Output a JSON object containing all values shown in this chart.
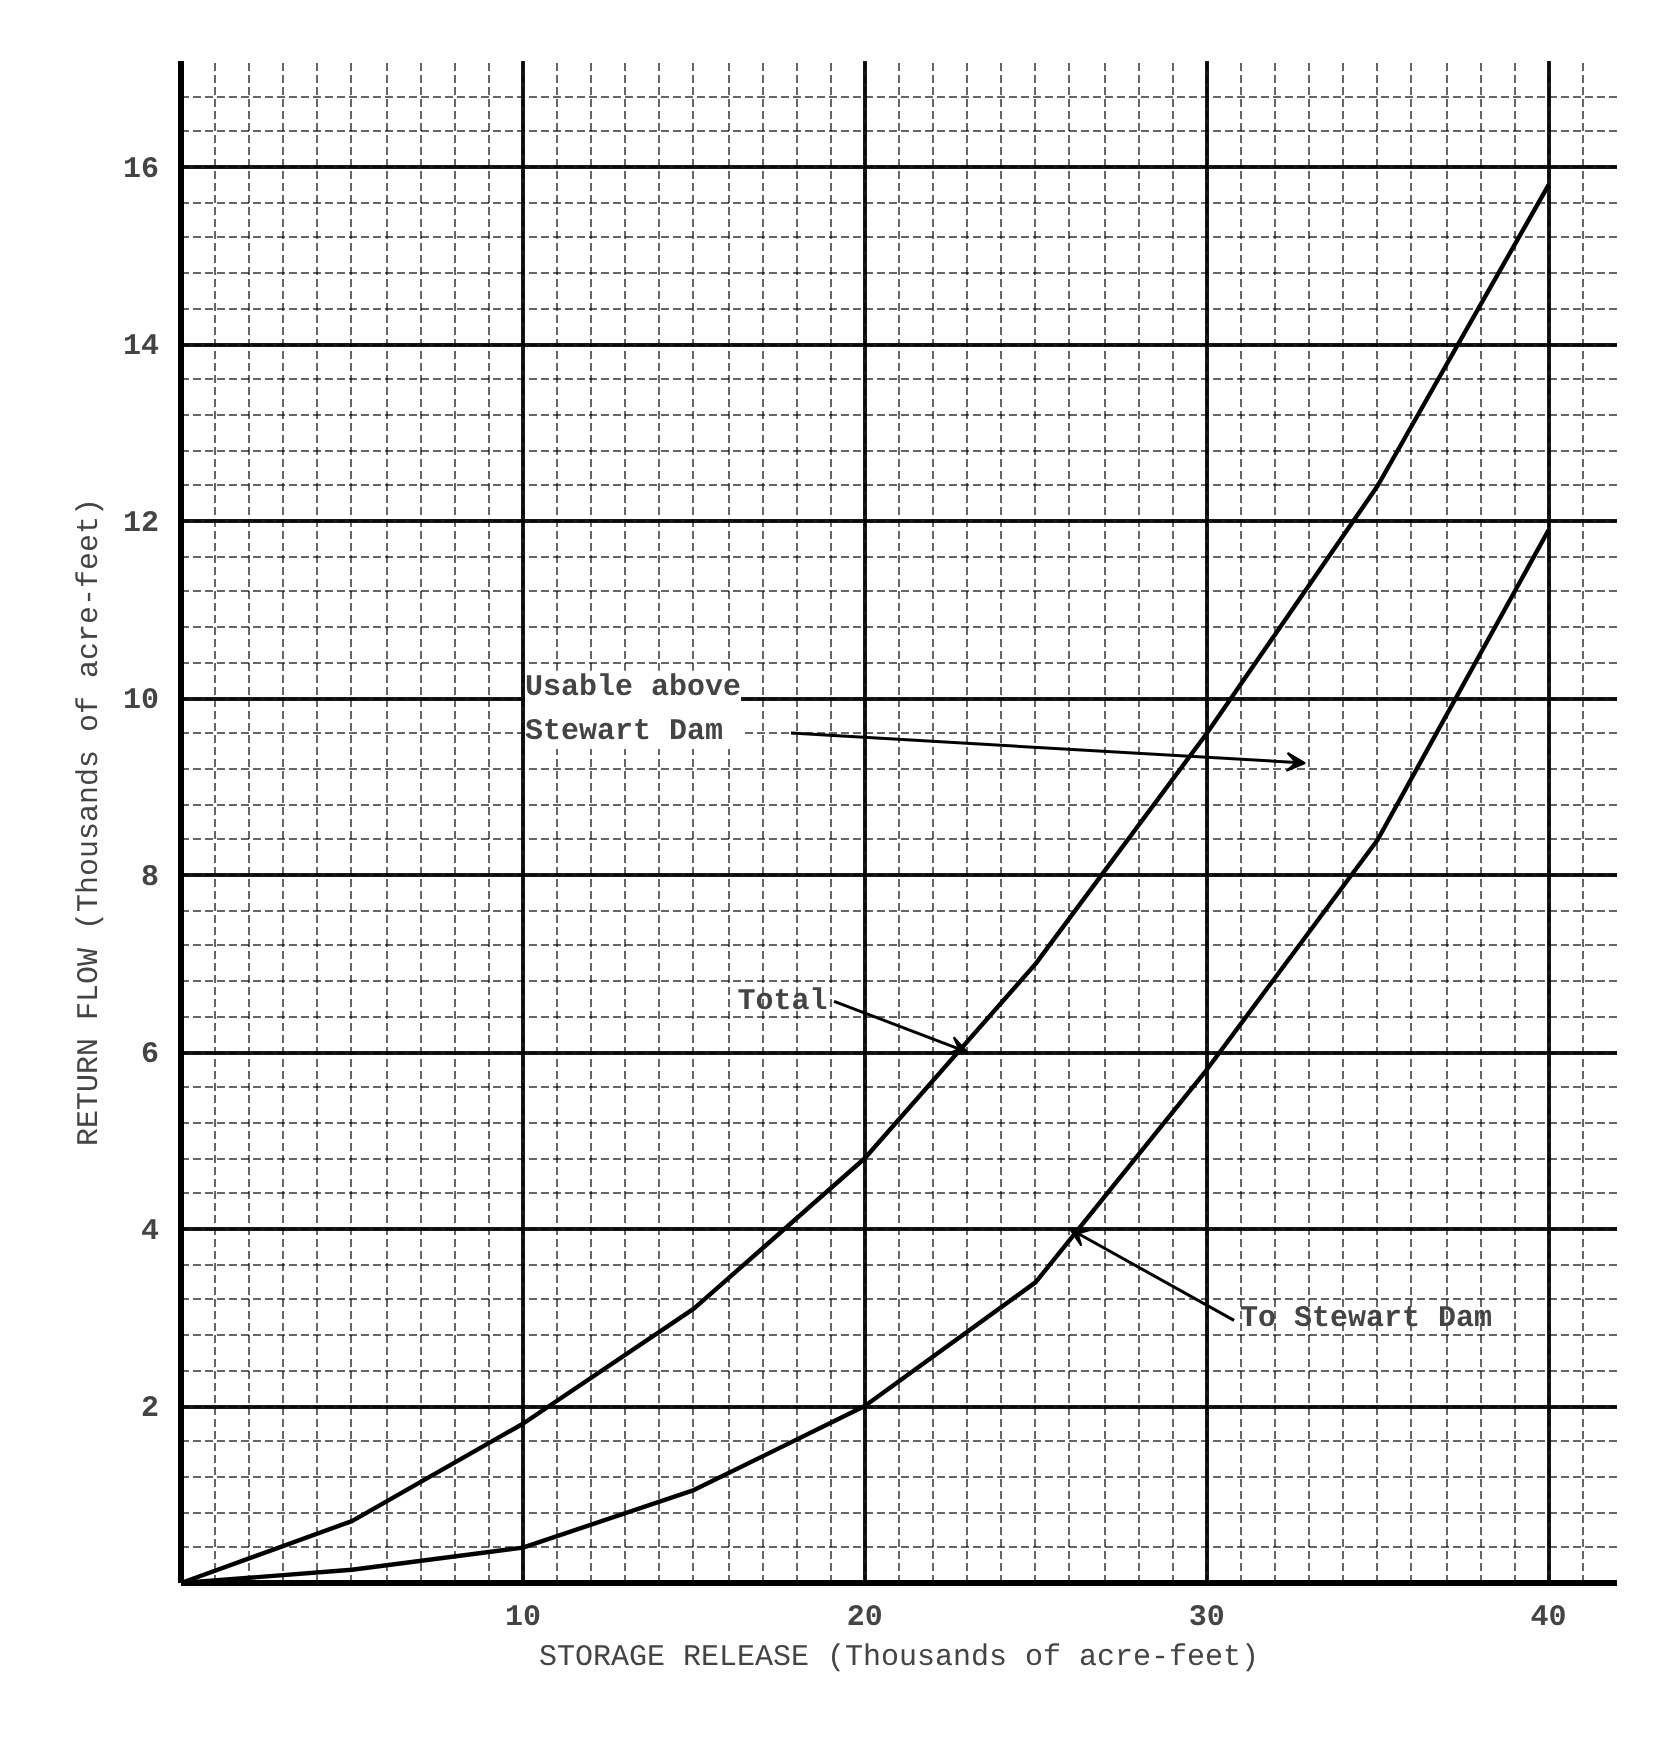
{
  "chart_data": {
    "type": "line",
    "x": [
      0,
      5,
      10,
      15,
      20,
      25,
      30,
      35,
      40
    ],
    "series": [
      {
        "color": "#000000",
        "values": [
          0,
          0.7,
          1.8,
          3.1,
          4.8,
          7.0,
          9.6,
          12.4,
          15.8
        ]
      },
      {
        "color": "#000000",
        "values": [
          0,
          0.15,
          0.4,
          1.05,
          2.0,
          3.4,
          5.8,
          8.4,
          11.9
        ]
      }
    ],
    "xlabel": "STORAGE RELEASE (Thousands of acre-feet)",
    "ylabel": "RETURN FLOW (Thousands of acre-feet)",
    "xlim": [
      0,
      42
    ],
    "ylim": [
      0,
      17.2
    ],
    "xticks": [
      10,
      20,
      30,
      40
    ],
    "yticks": [
      2,
      4,
      6,
      8,
      10,
      12,
      14,
      16
    ],
    "grid": true,
    "marker": "none",
    "line_style": "solid",
    "annotations": [
      "Usable above\nStewart Dam",
      {
        "text": "Total",
        "x": 23,
        "y": 6.0
      },
      {
        "text": "To Stewart Dam",
        "x": 26,
        "y": 4.0
      }
    ]
  }
}
